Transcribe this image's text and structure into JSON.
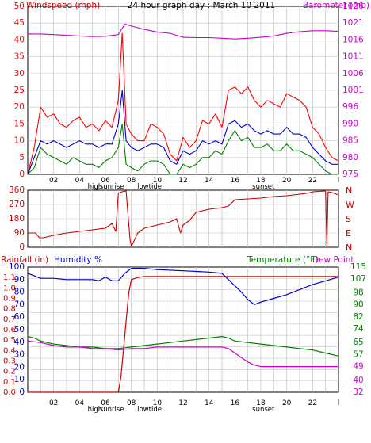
{
  "page": {
    "title": "24 hour graph day : March 10 2011",
    "background": "#ffffff"
  },
  "colors": {
    "frame": "#000000",
    "grid": "#c8c8c8",
    "wind": "#ff0000",
    "gust_avg": "#0000cc",
    "wind_min": "#008000",
    "barometer": "#cc00cc",
    "direction": "#cc0000",
    "rain": "#cc0000",
    "humidity": "#0000cc",
    "temperature": "#008000",
    "dewpoint": "#cc00cc",
    "rain_axis": "#cc0000",
    "humidity_axis": "#0000cc",
    "temp_axis": "#008000",
    "dew_axis": "#cc00cc"
  },
  "time_axis": {
    "hour_labels": [
      "02",
      "04",
      "06",
      "08",
      "10",
      "12",
      "14",
      "16",
      "18",
      "20",
      "22"
    ],
    "hour_positions": [
      2,
      4,
      6,
      8,
      10,
      12,
      14,
      16,
      18,
      20,
      22
    ],
    "end_label": "l",
    "events": [
      {
        "label": "high",
        "hour": 5.2
      },
      {
        "label": "sunrise",
        "hour": 6.5
      },
      {
        "label": "lowtide",
        "hour": 9.4
      },
      {
        "label": "sunset",
        "hour": 18.2
      }
    ]
  },
  "chart_data": [
    {
      "type": "line",
      "title": "",
      "xlabel": "",
      "ylabel": "Windspeed (mph)",
      "ylabel_right": "Barometer (mb)",
      "xlim": [
        0,
        24
      ],
      "ylim": [
        0,
        50
      ],
      "y_ticks": [
        0,
        5,
        10,
        15,
        20,
        25,
        30,
        35,
        40,
        45,
        50
      ],
      "ylim_right": [
        975,
        1026
      ],
      "y_ticks_right": [
        975,
        980,
        985,
        990,
        996,
        1001,
        1006,
        1011,
        1016,
        1021,
        1026
      ],
      "grid": true,
      "series": [
        {
          "key": "wind",
          "axis": "left",
          "x": [
            0.0,
            0.5,
            1.0,
            1.5,
            2.0,
            2.5,
            3.0,
            3.5,
            4.0,
            4.5,
            5.0,
            5.5,
            6.0,
            6.5,
            7.0,
            7.3,
            7.6,
            8.0,
            8.5,
            9.0,
            9.5,
            10.0,
            10.5,
            11.0,
            11.5,
            12.0,
            12.5,
            13.0,
            13.5,
            14.0,
            14.5,
            15.0,
            15.5,
            16.0,
            16.5,
            17.0,
            17.5,
            18.0,
            18.5,
            19.0,
            19.5,
            20.0,
            20.5,
            21.0,
            21.5,
            22.0,
            22.5,
            23.0,
            23.5,
            24.0
          ],
          "y": [
            0,
            8,
            20,
            17,
            18,
            15,
            14,
            16,
            17,
            14,
            15,
            13,
            16,
            14,
            22,
            42,
            15,
            12,
            10,
            10,
            15,
            14,
            12,
            6,
            4,
            11,
            8,
            10,
            16,
            15,
            18,
            14,
            25,
            26,
            24,
            26,
            22,
            20,
            22,
            21,
            20,
            24,
            23,
            22,
            20,
            14,
            12,
            8,
            5,
            4
          ]
        },
        {
          "key": "gust_avg",
          "axis": "left",
          "x": [
            0.0,
            0.5,
            1.0,
            1.5,
            2.0,
            2.5,
            3.0,
            3.5,
            4.0,
            4.5,
            5.0,
            5.5,
            6.0,
            6.5,
            7.0,
            7.3,
            7.6,
            8.0,
            8.5,
            9.0,
            9.5,
            10.0,
            10.5,
            11.0,
            11.5,
            12.0,
            12.5,
            13.0,
            13.5,
            14.0,
            14.5,
            15.0,
            15.5,
            16.0,
            16.5,
            17.0,
            17.5,
            18.0,
            18.5,
            19.0,
            19.5,
            20.0,
            20.5,
            21.0,
            21.5,
            22.0,
            22.5,
            23.0,
            23.5,
            24.0
          ],
          "y": [
            0,
            5,
            10,
            9,
            10,
            9,
            8,
            9,
            10,
            9,
            9,
            8,
            9,
            9,
            15,
            25,
            10,
            8,
            7,
            8,
            9,
            9,
            8,
            4,
            3,
            7,
            6,
            7,
            10,
            9,
            10,
            9,
            15,
            16,
            14,
            15,
            13,
            12,
            13,
            12,
            12,
            14,
            12,
            12,
            11,
            8,
            6,
            4,
            3,
            3
          ]
        },
        {
          "key": "wind_min",
          "axis": "left",
          "x": [
            0.0,
            0.5,
            1.0,
            1.5,
            2.0,
            2.5,
            3.0,
            3.5,
            4.0,
            4.5,
            5.0,
            5.5,
            6.0,
            6.5,
            7.0,
            7.3,
            7.6,
            8.0,
            8.5,
            9.0,
            9.5,
            10.0,
            10.5,
            11.0,
            11.5,
            12.0,
            12.5,
            13.0,
            13.5,
            14.0,
            14.5,
            15.0,
            15.5,
            16.0,
            16.5,
            17.0,
            17.5,
            18.0,
            18.5,
            19.0,
            19.5,
            20.0,
            20.5,
            21.0,
            21.5,
            22.0,
            22.5,
            23.0,
            23.5,
            24.0
          ],
          "y": [
            0,
            2,
            8,
            6,
            5,
            4,
            3,
            5,
            4,
            3,
            3,
            2,
            4,
            5,
            8,
            15,
            3,
            2,
            1,
            3,
            4,
            4,
            3,
            0,
            0,
            3,
            2,
            3,
            5,
            5,
            7,
            6,
            10,
            13,
            10,
            11,
            8,
            8,
            9,
            7,
            7,
            9,
            7,
            7,
            6,
            5,
            3,
            1,
            0,
            0
          ]
        },
        {
          "key": "barometer",
          "axis": "right",
          "x": [
            0,
            1,
            2,
            3,
            4,
            5,
            6,
            7,
            7.5,
            8,
            9,
            10,
            11,
            12,
            13,
            14,
            15,
            16,
            17,
            18,
            19,
            20,
            21,
            22,
            23,
            24
          ],
          "y": [
            1017.6,
            1017.6,
            1017.4,
            1017.2,
            1017.0,
            1016.8,
            1016.9,
            1017.4,
            1020.6,
            1020.0,
            1019.0,
            1018.2,
            1017.8,
            1016.6,
            1016.5,
            1016.5,
            1016.3,
            1016.1,
            1016.3,
            1016.6,
            1017.0,
            1017.8,
            1018.3,
            1018.6,
            1018.6,
            1018.4
          ]
        }
      ]
    },
    {
      "type": "line",
      "title": "",
      "xlabel": "",
      "ylabel": "",
      "ylabel_right": "",
      "xlim": [
        0,
        24
      ],
      "ylim": [
        0,
        360
      ],
      "y_ticks": [
        0,
        90,
        180,
        270,
        360
      ],
      "compass_labels": [
        "N",
        "W",
        "S",
        "E",
        "N"
      ],
      "grid": true,
      "series": [
        {
          "key": "direction",
          "axis": "left",
          "x": [
            0,
            0.3,
            0.6,
            0.9,
            1.2,
            2,
            3,
            4,
            5,
            6,
            6.5,
            6.8,
            7,
            7.3,
            7.6,
            7.9,
            8,
            8.5,
            9,
            10,
            11,
            11.5,
            11.8,
            12,
            12.5,
            13,
            14,
            15,
            15.5,
            16,
            17,
            18,
            19,
            20,
            21,
            21.5,
            21.8,
            22,
            23,
            23.1,
            23.2,
            23.5,
            24
          ],
          "y": [
            90,
            90,
            90,
            60,
            60,
            75,
            90,
            100,
            110,
            120,
            150,
            100,
            340,
            350,
            355,
            50,
            5,
            90,
            120,
            140,
            160,
            180,
            90,
            140,
            170,
            220,
            240,
            250,
            260,
            300,
            305,
            310,
            320,
            325,
            335,
            340,
            345,
            350,
            355,
            10,
            350,
            345,
            330
          ]
        }
      ]
    },
    {
      "type": "line",
      "title": "",
      "xlabel": "",
      "ylabel": "Rainfall (in)",
      "ylabel_2": "Humidity %",
      "ylabel_right": "Temperature (°F)",
      "ylabel_right_2": "Dew Point",
      "xlim": [
        0,
        24
      ],
      "ylim_rain": [
        0,
        1.2
      ],
      "rain_ticks": [
        0.0,
        0.1,
        0.2,
        0.3,
        0.4,
        0.5,
        0.6,
        0.7,
        0.8,
        0.9,
        1.0,
        1.1
      ],
      "ylim_humidity": [
        0,
        100
      ],
      "humidity_ticks": [
        0,
        10,
        20,
        30,
        40,
        50,
        60,
        70,
        80,
        90,
        100
      ],
      "ylim_temp": [
        32,
        115
      ],
      "temp_ticks": [
        32,
        40,
        49,
        57,
        65,
        74,
        82,
        90,
        98,
        107,
        115
      ],
      "grid": true,
      "series": [
        {
          "key": "rain",
          "axis": "rain",
          "x": [
            0,
            7,
            7.2,
            7.5,
            7.8,
            8.0,
            8.5,
            9,
            10,
            12,
            16,
            20,
            24
          ],
          "y": [
            0.0,
            0.0,
            0.15,
            0.55,
            0.95,
            1.08,
            1.1,
            1.11,
            1.11,
            1.11,
            1.11,
            1.11,
            1.11
          ]
        },
        {
          "key": "humidity",
          "axis": "humidity",
          "x": [
            0,
            0.5,
            1,
            2,
            3,
            4,
            5,
            5.5,
            6,
            6.5,
            7,
            7.5,
            8,
            9,
            10,
            12,
            14,
            15,
            16,
            16.5,
            17,
            17.5,
            18,
            19,
            20,
            21,
            22,
            23,
            24
          ],
          "y": [
            95,
            93,
            91,
            91,
            90,
            90,
            90,
            89,
            92,
            89,
            89,
            95,
            99,
            99,
            98,
            97,
            96,
            95,
            85,
            80,
            74,
            70,
            72,
            75,
            78,
            82,
            86,
            89,
            92
          ]
        },
        {
          "key": "temperature",
          "axis": "temp",
          "x": [
            0,
            0.5,
            1,
            2,
            3,
            4,
            5,
            6,
            7,
            8,
            9,
            10,
            11,
            12,
            13,
            14,
            15,
            15.5,
            16,
            17,
            18,
            19,
            20,
            21,
            22,
            23,
            24
          ],
          "y": [
            69,
            68,
            66,
            64,
            63,
            62,
            62,
            61,
            61,
            62,
            63,
            64,
            65,
            66,
            67,
            68,
            69,
            68,
            66,
            65,
            64,
            63,
            62,
            61,
            60,
            58,
            56
          ]
        },
        {
          "key": "dewpoint",
          "axis": "temp",
          "x": [
            0,
            1,
            2,
            3,
            4,
            5,
            6,
            7,
            8,
            9,
            10,
            11,
            12,
            13,
            14,
            15,
            15.5,
            16,
            16.5,
            17,
            17.5,
            18,
            19,
            20,
            21,
            22,
            23,
            24
          ],
          "y": [
            66,
            65,
            63,
            62,
            62,
            61,
            61,
            60,
            61,
            61,
            62,
            62,
            62,
            62,
            62,
            62,
            61,
            58,
            55,
            52,
            50,
            49,
            49,
            49,
            49,
            49,
            49,
            49
          ]
        }
      ]
    }
  ]
}
